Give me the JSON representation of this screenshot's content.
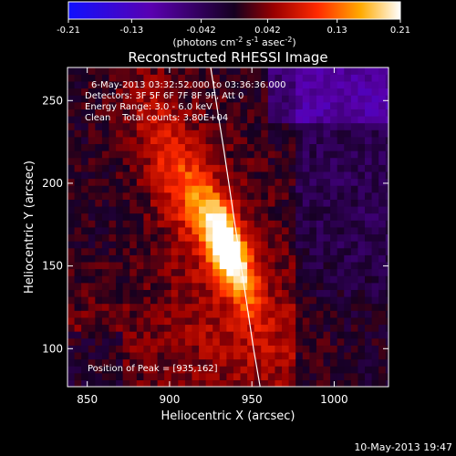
{
  "colorbar": {
    "ticks": [
      "-0.21",
      "-0.13",
      "-0.042",
      "0.042",
      "0.13",
      "0.21"
    ],
    "tick_values": [
      -0.21,
      -0.13,
      -0.042,
      0.042,
      0.13,
      0.21
    ],
    "range": [
      -0.21,
      0.21
    ],
    "unit_parts": {
      "a": "(photons cm",
      "b": "-2",
      "c": " s",
      "d": "-1",
      "e": " asec",
      "f": "-2",
      "g": ")"
    }
  },
  "chart_data": {
    "type": "heatmap",
    "title": "Reconstructed RHESSI Image",
    "xlabel": "Heliocentric X (arcsec)",
    "ylabel": "Heliocentric Y (arcsec)",
    "xlim": [
      838,
      1033
    ],
    "ylim": [
      77,
      270
    ],
    "xticks": [
      850,
      900,
      950,
      1000
    ],
    "yticks": [
      100,
      150,
      200,
      250
    ],
    "peak": {
      "x": 935,
      "y": 162,
      "value": 0.21
    },
    "annotations": [
      "6-May-2013 03:32:52.000 to 03:36:36.000",
      "Detectors: 3F 5F 6F 7F 8F 9F, Att 0",
      "Energy Range: 3.0 - 6.0 keV",
      "Clean    Total counts: 3.80E+04",
      "Position of Peak = [935,162]"
    ],
    "footer": "10-May-2013 19:47",
    "limb_curve": [
      [
        925,
        270
      ],
      [
        933,
        220
      ],
      [
        939,
        180
      ],
      [
        945,
        140
      ],
      [
        951,
        100
      ],
      [
        955,
        77
      ]
    ]
  }
}
